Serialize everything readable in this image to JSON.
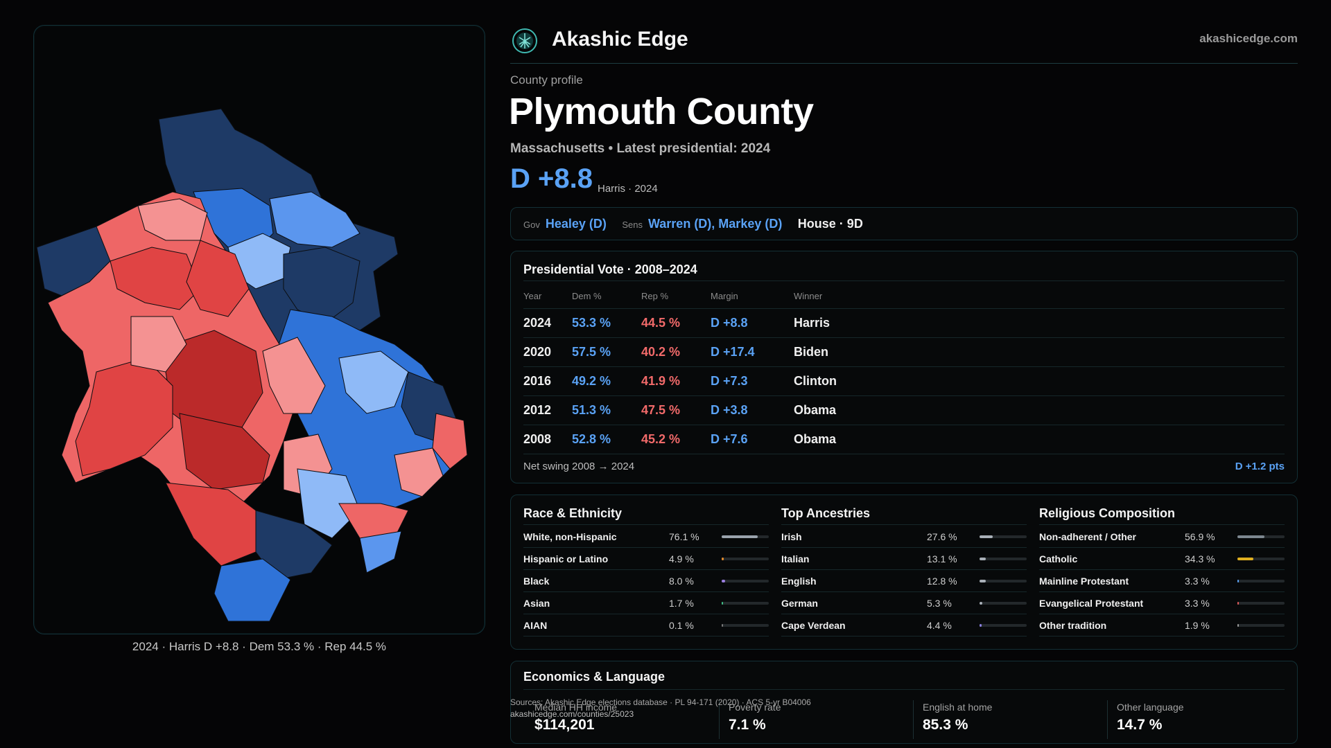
{
  "brand": {
    "name": "Akashic Edge",
    "url": "akashicedge.com",
    "logo_icon": "tree-of-life-icon"
  },
  "profile": {
    "kicker": "County profile",
    "county": "Plymouth County",
    "subtitle": "Massachusetts • Latest presidential: 2024",
    "headline_margin": "D +8.8",
    "headline_note": "Harris · 2024"
  },
  "officials": {
    "gov_label": "Gov",
    "gov_value": "Healey (D)",
    "sens_label": "Sens",
    "sens_value": "Warren (D), Markey (D)",
    "house_value": "House · 9D"
  },
  "presidential": {
    "title": "Presidential Vote · 2008–2024",
    "columns": [
      "Year",
      "Dem %",
      "Rep %",
      "Margin",
      "Winner"
    ],
    "rows": [
      {
        "year": "2024",
        "dem": "53.3 %",
        "rep": "44.5 %",
        "margin": "D +8.8",
        "winner": "Harris"
      },
      {
        "year": "2020",
        "dem": "57.5 %",
        "rep": "40.2 %",
        "margin": "D +17.4",
        "winner": "Biden"
      },
      {
        "year": "2016",
        "dem": "49.2 %",
        "rep": "41.9 %",
        "margin": "D +7.3",
        "winner": "Clinton"
      },
      {
        "year": "2012",
        "dem": "51.3 %",
        "rep": "47.5 %",
        "margin": "D +3.8",
        "winner": "Obama"
      },
      {
        "year": "2008",
        "dem": "52.8 %",
        "rep": "45.2 %",
        "margin": "D +7.6",
        "winner": "Obama"
      }
    ],
    "swing_label": "Net swing 2008 → 2024",
    "swing_value": "D +1.2 pts"
  },
  "demographics": [
    {
      "title": "Race & Ethnicity",
      "rows": [
        {
          "label": "White, non-Hispanic",
          "value": "76.1 %",
          "pct": 76.1,
          "color": "#9aa3ad"
        },
        {
          "label": "Hispanic or Latino",
          "value": "4.9 %",
          "pct": 4.9,
          "color": "#e08a2c"
        },
        {
          "label": "Black",
          "value": "8.0 %",
          "pct": 8.0,
          "color": "#9b7fe0"
        },
        {
          "label": "Asian",
          "value": "1.7 %",
          "pct": 1.7,
          "color": "#3fbf86"
        },
        {
          "label": "AIAN",
          "value": "0.1 %",
          "pct": 0.1,
          "color": "#7a7a7a"
        }
      ]
    },
    {
      "title": "Top Ancestries",
      "rows": [
        {
          "label": "Irish",
          "value": "27.6 %",
          "pct": 27.6,
          "color": "#a9b0b8"
        },
        {
          "label": "Italian",
          "value": "13.1 %",
          "pct": 13.1,
          "color": "#a9b0b8"
        },
        {
          "label": "English",
          "value": "12.8 %",
          "pct": 12.8,
          "color": "#a9b0b8"
        },
        {
          "label": "German",
          "value": "5.3 %",
          "pct": 5.3,
          "color": "#a9b0b8"
        },
        {
          "label": "Cape Verdean",
          "value": "4.4 %",
          "pct": 4.4,
          "color": "#8a7fe0"
        }
      ]
    },
    {
      "title": "Religious Composition",
      "rows": [
        {
          "label": "Non-adherent / Other",
          "value": "56.9 %",
          "pct": 56.9,
          "color": "#7d8790"
        },
        {
          "label": "Catholic",
          "value": "34.3 %",
          "pct": 34.3,
          "color": "#e0b020"
        },
        {
          "label": "Mainline Protestant",
          "value": "3.3 %",
          "pct": 3.3,
          "color": "#5aa2f5"
        },
        {
          "label": "Evangelical Protestant",
          "value": "3.3 %",
          "pct": 3.3,
          "color": "#e05a5a"
        },
        {
          "label": "Other tradition",
          "value": "1.9 %",
          "pct": 1.9,
          "color": "#9a9a9a"
        }
      ]
    }
  ],
  "economics": {
    "title": "Economics & Language",
    "metrics": [
      {
        "label": "Median HH income",
        "value": "$114,201"
      },
      {
        "label": "Poverty rate",
        "value": "7.1 %"
      },
      {
        "label": "English at home",
        "value": "85.3 %"
      },
      {
        "label": "Other language",
        "value": "14.7 %"
      }
    ]
  },
  "sources": {
    "line": "Sources: Akashic Edge elections database · PL 94-171 (2020) · ACS 5-yr B04006",
    "url": "akashicedge.com/counties/25023"
  },
  "map": {
    "caption": "2024 · Harris D +8.8 · Dem 53.3 % · Rep 44.5 %",
    "colors": {
      "dem_strong": "#1e3a66",
      "dem_mid": "#2f73d8",
      "dem_lean": "#5b96ee",
      "dem_tilt": "#8fbaf7",
      "rep_tilt": "#f49292",
      "rep_lean": "#ee6666",
      "rep_mid": "#e04444",
      "rep_strong": "#bb2a2a"
    }
  }
}
